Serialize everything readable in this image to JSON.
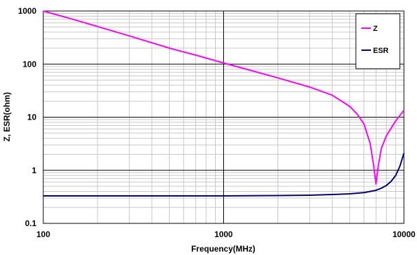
{
  "chart_data": {
    "type": "line",
    "xlabel": "Frequency(MHz)",
    "ylabel": "Z, ESR(ohm)",
    "x_scale": "log",
    "y_scale": "log",
    "xlim": [
      100,
      10000
    ],
    "ylim": [
      0.1,
      1000
    ],
    "x_ticks": [
      {
        "value": 100,
        "label": "100"
      },
      {
        "value": 1000,
        "label": "1000"
      },
      {
        "value": 10000,
        "label": "10000"
      }
    ],
    "y_ticks": [
      {
        "value": 0.1,
        "label": "0.1"
      },
      {
        "value": 1,
        "label": "1"
      },
      {
        "value": 10,
        "label": "10"
      },
      {
        "value": 100,
        "label": "100"
      },
      {
        "value": 1000,
        "label": "1000"
      }
    ],
    "grid": true,
    "legend_position": "top-right",
    "series": [
      {
        "name": "Z",
        "color": "#ff00ff",
        "x": [
          100,
          150,
          200,
          300,
          500,
          700,
          1000,
          1500,
          2000,
          3000,
          4000,
          5000,
          5500,
          6000,
          6500,
          6800,
          7000,
          7200,
          7500,
          8000,
          9000,
          10000
        ],
        "y": [
          1000,
          680,
          510,
          340,
          200,
          148,
          105,
          72,
          55,
          37,
          26,
          16,
          11.5,
          7.5,
          3.2,
          1.2,
          0.55,
          1.2,
          2.6,
          4.5,
          8.5,
          13.5
        ]
      },
      {
        "name": "ESR",
        "color": "#000080",
        "x": [
          100,
          300,
          1000,
          2000,
          3000,
          4000,
          5000,
          6000,
          7000,
          7500,
          8000,
          8500,
          9000,
          9500,
          10000
        ],
        "y": [
          0.33,
          0.33,
          0.33,
          0.335,
          0.34,
          0.35,
          0.36,
          0.38,
          0.42,
          0.46,
          0.52,
          0.62,
          0.8,
          1.2,
          2.1
        ]
      }
    ]
  }
}
